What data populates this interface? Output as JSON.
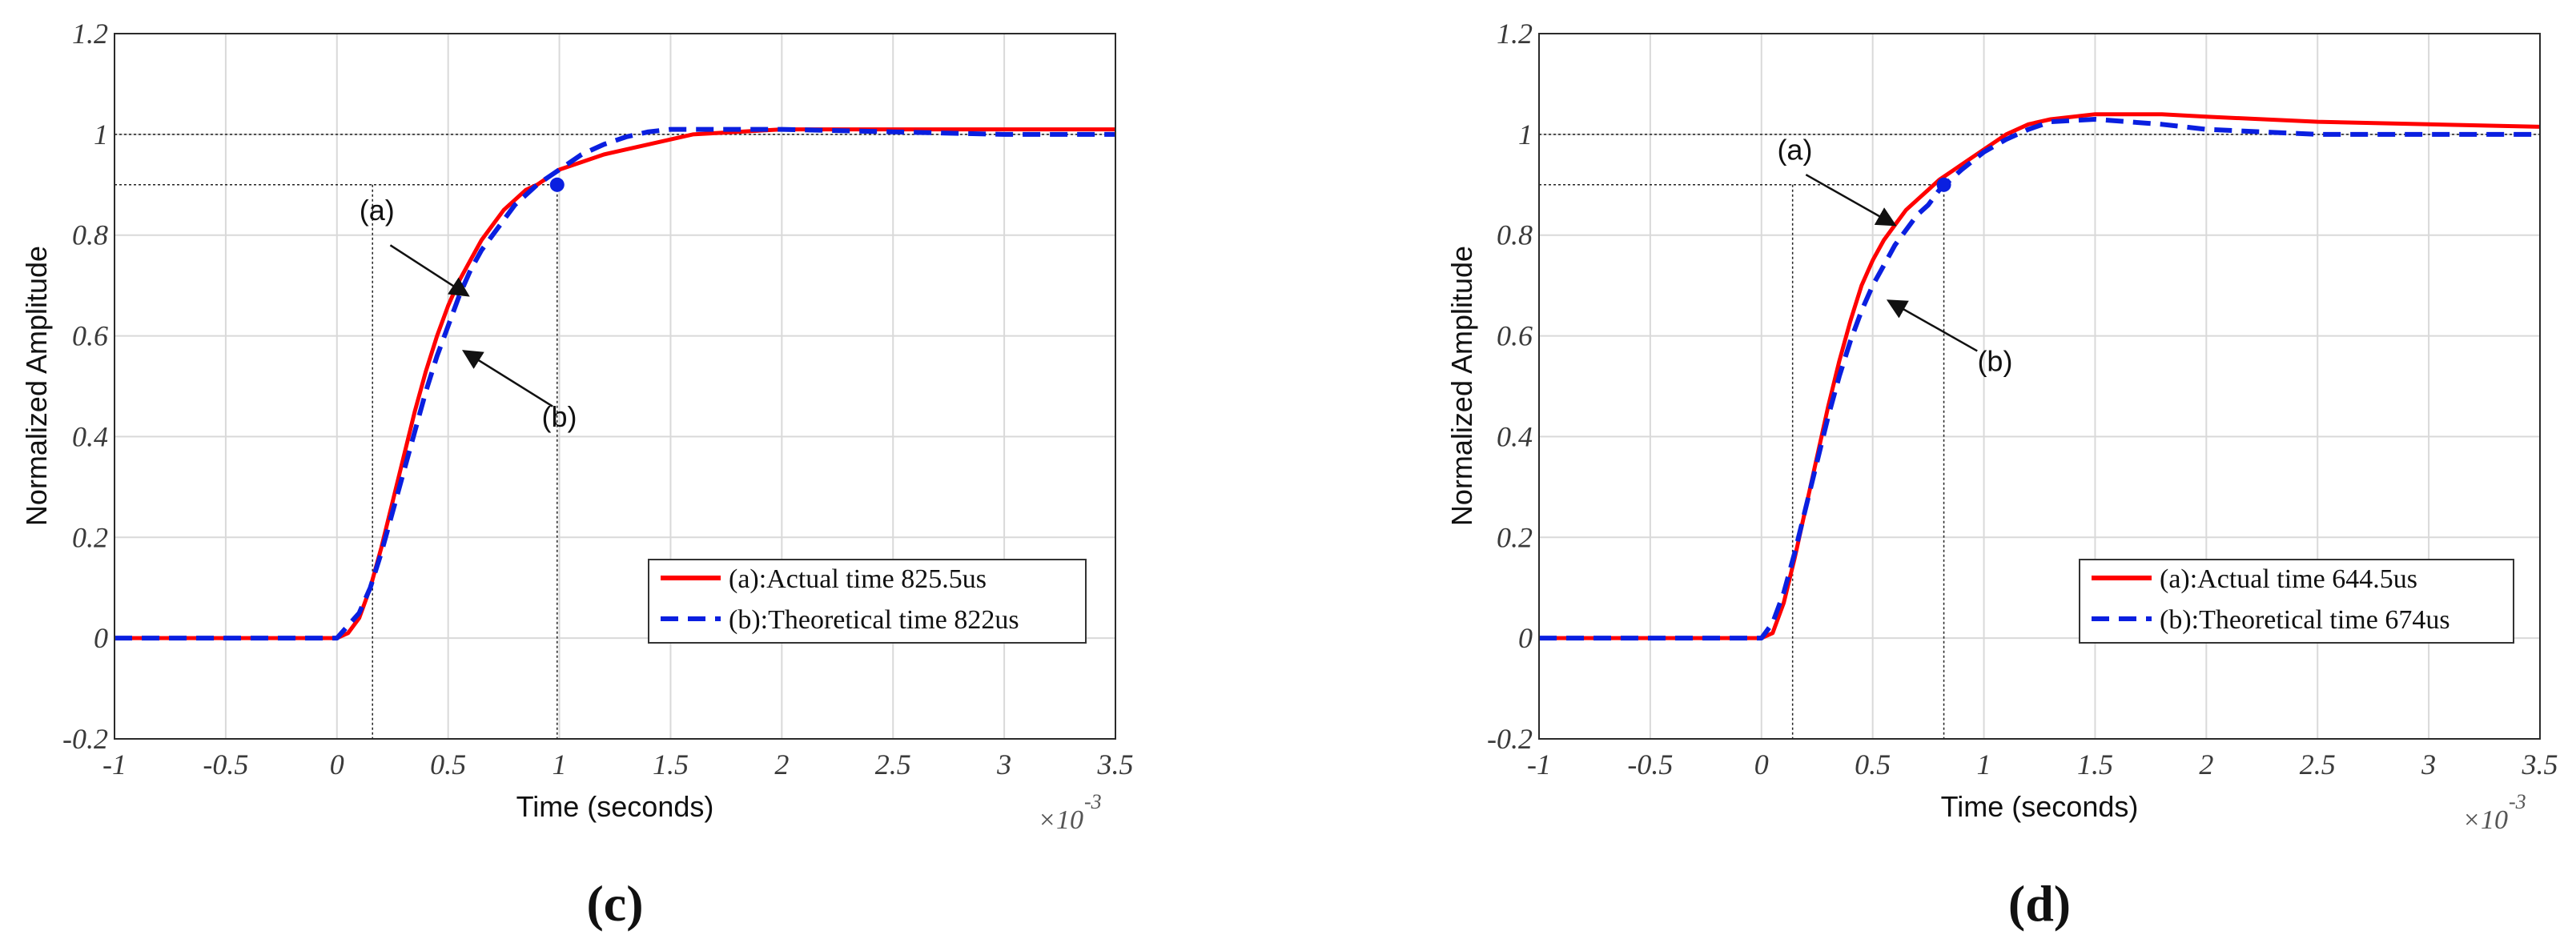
{
  "chart_data": [
    {
      "type": "line",
      "panel_label": "(c)",
      "xlabel": "Time (seconds)",
      "ylabel": "Normalized Amplitude",
      "x_exponent": "×10",
      "x_exponent_power": "-3",
      "xlim": [
        -1,
        3.5
      ],
      "ylim": [
        -0.2,
        1.2
      ],
      "x_ticks": [
        -1,
        -0.5,
        0,
        0.5,
        1,
        1.5,
        2,
        2.5,
        3,
        3.5
      ],
      "x_tick_labels": [
        "-1",
        "-0.5",
        "0",
        "0.5",
        "1",
        "1.5",
        "2",
        "2.5",
        "3",
        "3.5"
      ],
      "y_ticks": [
        -0.2,
        0,
        0.2,
        0.4,
        0.6,
        0.8,
        1,
        1.2
      ],
      "y_tick_labels": [
        "-0.2",
        "0",
        "0.2",
        "0.4",
        "0.6",
        "0.8",
        "1",
        "1.2"
      ],
      "grid": true,
      "legend_position": "bottom-right",
      "guides": {
        "x_start": 0.16,
        "x_end": 0.99,
        "y_ten": 0.9,
        "y_full": 1.0
      },
      "marker": {
        "x": 0.99,
        "y": 0.9
      },
      "series": [
        {
          "name": "(a):Actual time 825.5us",
          "color": "#ff0000",
          "style": "solid",
          "x": [
            -1,
            -0.5,
            0,
            0.05,
            0.1,
            0.15,
            0.2,
            0.25,
            0.3,
            0.35,
            0.4,
            0.45,
            0.5,
            0.55,
            0.6,
            0.65,
            0.7,
            0.75,
            0.8,
            0.85,
            0.9,
            0.95,
            1.0,
            1.1,
            1.2,
            1.3,
            1.4,
            1.5,
            1.6,
            1.8,
            2.0,
            2.5,
            3.0,
            3.5
          ],
          "values": [
            0,
            0,
            0,
            0.01,
            0.04,
            0.1,
            0.18,
            0.27,
            0.36,
            0.45,
            0.53,
            0.6,
            0.66,
            0.71,
            0.75,
            0.79,
            0.82,
            0.85,
            0.87,
            0.89,
            0.9,
            0.915,
            0.93,
            0.945,
            0.96,
            0.97,
            0.98,
            0.99,
            1.0,
            1.005,
            1.01,
            1.01,
            1.01,
            1.01
          ]
        },
        {
          "name": "(b):Theoretical time 822us",
          "color": "#0a1fe0",
          "style": "dashed",
          "x": [
            -1,
            -0.5,
            0,
            0.1,
            0.15,
            0.2,
            0.25,
            0.3,
            0.35,
            0.4,
            0.45,
            0.5,
            0.55,
            0.6,
            0.65,
            0.7,
            0.75,
            0.8,
            0.85,
            0.9,
            0.95,
            1.0,
            1.1,
            1.2,
            1.3,
            1.4,
            1.5,
            1.7,
            2.0,
            2.5,
            3.0,
            3.5
          ],
          "values": [
            0,
            0,
            0,
            0.05,
            0.1,
            0.17,
            0.25,
            0.33,
            0.41,
            0.49,
            0.56,
            0.62,
            0.68,
            0.73,
            0.77,
            0.8,
            0.83,
            0.86,
            0.88,
            0.9,
            0.915,
            0.93,
            0.96,
            0.98,
            0.995,
            1.005,
            1.01,
            1.01,
            1.01,
            1.005,
            1.0,
            1.0
          ]
        }
      ],
      "annotations": [
        {
          "text": "(a)",
          "text_x": 0.18,
          "text_y": 0.83,
          "arrow_from_x": 0.24,
          "arrow_from_y": 0.78,
          "arrow_to_x": 0.59,
          "arrow_to_y": 0.68
        },
        {
          "text": "(b)",
          "text_x": 1.0,
          "text_y": 0.42,
          "arrow_from_x": 0.97,
          "arrow_from_y": 0.46,
          "arrow_to_x": 0.57,
          "arrow_to_y": 0.57
        }
      ]
    },
    {
      "type": "line",
      "panel_label": "(d)",
      "xlabel": "Time (seconds)",
      "ylabel": "Normalized Amplitude",
      "x_exponent": "×10",
      "x_exponent_power": "-3",
      "xlim": [
        -1,
        3.5
      ],
      "ylim": [
        -0.2,
        1.2
      ],
      "x_ticks": [
        -1,
        -0.5,
        0,
        0.5,
        1,
        1.5,
        2,
        2.5,
        3,
        3.5
      ],
      "x_tick_labels": [
        "-1",
        "-0.5",
        "0",
        "0.5",
        "1",
        "1.5",
        "2",
        "2.5",
        "3",
        "3.5"
      ],
      "y_ticks": [
        -0.2,
        0,
        0.2,
        0.4,
        0.6,
        0.8,
        1,
        1.2
      ],
      "y_tick_labels": [
        "-0.2",
        "0",
        "0.2",
        "0.4",
        "0.6",
        "0.8",
        "1",
        "1.2"
      ],
      "grid": true,
      "legend_position": "bottom-right",
      "guides": {
        "x_start": 0.14,
        "x_end": 0.82,
        "y_ten": 0.9,
        "y_full": 1.0
      },
      "marker": {
        "x": 0.82,
        "y": 0.9
      },
      "series": [
        {
          "name": "(a):Actual time 644.5us",
          "color": "#ff0000",
          "style": "solid",
          "x": [
            -1,
            -0.5,
            0,
            0.05,
            0.1,
            0.15,
            0.2,
            0.25,
            0.3,
            0.35,
            0.4,
            0.45,
            0.5,
            0.55,
            0.6,
            0.65,
            0.7,
            0.75,
            0.8,
            0.85,
            0.9,
            1.0,
            1.1,
            1.2,
            1.3,
            1.5,
            1.8,
            2.0,
            2.5,
            3.0,
            3.5
          ],
          "values": [
            0,
            0,
            0,
            0.01,
            0.07,
            0.16,
            0.26,
            0.36,
            0.46,
            0.55,
            0.63,
            0.7,
            0.75,
            0.79,
            0.82,
            0.85,
            0.87,
            0.89,
            0.91,
            0.925,
            0.94,
            0.97,
            1.0,
            1.02,
            1.03,
            1.04,
            1.04,
            1.035,
            1.025,
            1.02,
            1.015
          ]
        },
        {
          "name": "(b):Theoretical time 674us",
          "color": "#0a1fe0",
          "style": "dashed",
          "x": [
            -1,
            -0.5,
            0,
            0.05,
            0.1,
            0.15,
            0.2,
            0.25,
            0.3,
            0.35,
            0.4,
            0.45,
            0.5,
            0.55,
            0.6,
            0.65,
            0.7,
            0.75,
            0.8,
            0.85,
            0.9,
            1.0,
            1.1,
            1.2,
            1.3,
            1.5,
            1.8,
            2.0,
            2.5,
            3.0,
            3.5
          ],
          "values": [
            0,
            0,
            0,
            0.03,
            0.09,
            0.17,
            0.26,
            0.35,
            0.44,
            0.52,
            0.59,
            0.65,
            0.7,
            0.74,
            0.78,
            0.81,
            0.84,
            0.86,
            0.89,
            0.91,
            0.93,
            0.965,
            0.99,
            1.01,
            1.025,
            1.03,
            1.02,
            1.01,
            1.0,
            1.0,
            1.0
          ]
        }
      ],
      "annotations": [
        {
          "text": "(a)",
          "text_x": 0.15,
          "text_y": 0.95,
          "arrow_from_x": 0.2,
          "arrow_from_y": 0.92,
          "arrow_to_x": 0.6,
          "arrow_to_y": 0.82
        },
        {
          "text": "(b)",
          "text_x": 1.05,
          "text_y": 0.53,
          "arrow_from_x": 0.97,
          "arrow_from_y": 0.57,
          "arrow_to_x": 0.57,
          "arrow_to_y": 0.67
        }
      ]
    }
  ]
}
